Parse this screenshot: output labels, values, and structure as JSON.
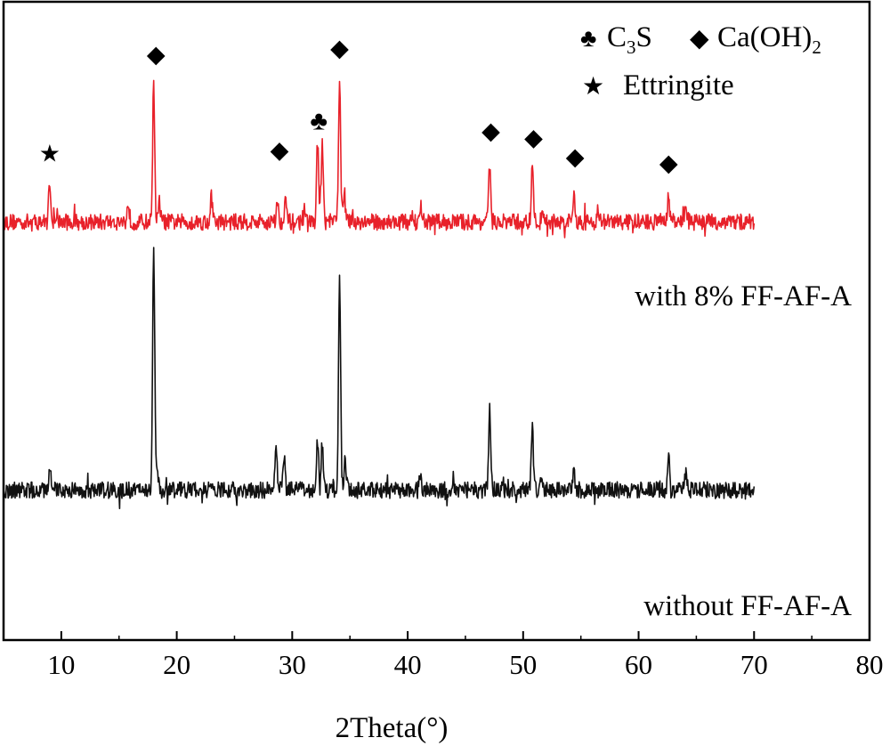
{
  "chart_data": {
    "type": "line",
    "title": "",
    "xlabel": "2Theta(°)",
    "ylabel": "",
    "xlim": [
      5,
      80
    ],
    "ylim": [
      0,
      100
    ],
    "x_ticks": [
      10,
      20,
      30,
      40,
      50,
      60,
      70,
      80
    ],
    "tick_labels": [
      "10",
      "20",
      "30",
      "40",
      "50",
      "60",
      "70",
      "80"
    ],
    "legend": {
      "placement": "top-right",
      "entries": [
        {
          "symbol": "club",
          "glyph": "♣",
          "label_main": "C",
          "label_sub": "3",
          "label_tail": "S"
        },
        {
          "symbol": "diamond",
          "glyph": "◆",
          "label_main": "Ca(OH)",
          "label_sub": "2",
          "label_tail": ""
        },
        {
          "symbol": "star",
          "glyph": "★",
          "label_main": "Ettringite",
          "label_sub": "",
          "label_tail": ""
        }
      ]
    },
    "series": [
      {
        "name": "with 8% FF-AF-A",
        "color": "#e8212a",
        "x_range": [
          5,
          70
        ],
        "baseline": 65.5,
        "noise": 1.3,
        "peaks": [
          {
            "x": 9.0,
            "h": 6.5
          },
          {
            "x": 15.8,
            "h": 3
          },
          {
            "x": 18.0,
            "h": 21.5
          },
          {
            "x": 18.5,
            "h": 3
          },
          {
            "x": 23.0,
            "h": 4
          },
          {
            "x": 28.7,
            "h": 3.5
          },
          {
            "x": 29.4,
            "h": 4
          },
          {
            "x": 31.0,
            "h": 2
          },
          {
            "x": 32.2,
            "h": 12.5
          },
          {
            "x": 32.6,
            "h": 12
          },
          {
            "x": 34.1,
            "h": 22.5
          },
          {
            "x": 34.5,
            "h": 5
          },
          {
            "x": 41.1,
            "h": 2.5
          },
          {
            "x": 47.1,
            "h": 8.5
          },
          {
            "x": 50.8,
            "h": 8.5
          },
          {
            "x": 51.7,
            "h": 2
          },
          {
            "x": 54.4,
            "h": 4
          },
          {
            "x": 56.5,
            "h": 2
          },
          {
            "x": 62.6,
            "h": 4
          },
          {
            "x": 64.1,
            "h": 2.5
          }
        ]
      },
      {
        "name": "without FF-AF-A",
        "color": "#111111",
        "x_range": [
          5,
          70
        ],
        "baseline": 23.5,
        "noise": 1.3,
        "peaks": [
          {
            "x": 9.0,
            "h": 3.5
          },
          {
            "x": 18.0,
            "h": 38
          },
          {
            "x": 18.3,
            "h": 4
          },
          {
            "x": 28.6,
            "h": 7.5
          },
          {
            "x": 29.3,
            "h": 5
          },
          {
            "x": 32.2,
            "h": 8
          },
          {
            "x": 32.6,
            "h": 7.5
          },
          {
            "x": 34.1,
            "h": 34
          },
          {
            "x": 34.6,
            "h": 5
          },
          {
            "x": 41.1,
            "h": 2.5
          },
          {
            "x": 47.1,
            "h": 11.5
          },
          {
            "x": 50.8,
            "h": 9.5
          },
          {
            "x": 51.6,
            "h": 2.5
          },
          {
            "x": 54.4,
            "h": 2.5
          },
          {
            "x": 62.6,
            "h": 5
          },
          {
            "x": 64.1,
            "h": 2.5
          }
        ]
      }
    ],
    "annotations": [
      {
        "series": "with 8% FF-AF-A",
        "label": "with 8% FF-AF-A",
        "x": 73,
        "y": 56
      },
      {
        "series": "without FF-AF-A",
        "label": "without FF-AF-A",
        "x": 73,
        "y": 14.5
      }
    ],
    "markers": [
      {
        "symbol": "star",
        "glyph": "★",
        "x": 9.0,
        "y": 75
      },
      {
        "symbol": "diamond",
        "glyph": "◆",
        "x": 18.2,
        "y": 90.5
      },
      {
        "symbol": "diamond",
        "glyph": "◆",
        "x": 28.9,
        "y": 75.5
      },
      {
        "symbol": "club",
        "glyph": "♣",
        "x": 32.3,
        "y": 80
      },
      {
        "symbol": "diamond",
        "glyph": "◆",
        "x": 34.1,
        "y": 91.5
      },
      {
        "symbol": "diamond",
        "glyph": "◆",
        "x": 47.2,
        "y": 78.5
      },
      {
        "symbol": "diamond",
        "glyph": "◆",
        "x": 50.9,
        "y": 77.5
      },
      {
        "symbol": "diamond",
        "glyph": "◆",
        "x": 54.5,
        "y": 74.5
      },
      {
        "symbol": "diamond",
        "glyph": "◆",
        "x": 62.6,
        "y": 73.5
      }
    ]
  }
}
